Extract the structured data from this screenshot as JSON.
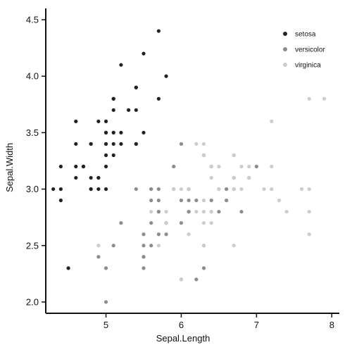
{
  "chart_data": {
    "type": "scatter",
    "title": "",
    "xlabel": "Sepal.Length",
    "ylabel": "Sepal.Width",
    "xlim": [
      4.3,
      7.9
    ],
    "ylim": [
      2.0,
      4.4
    ],
    "x_ticks": [
      5,
      6,
      7,
      8
    ],
    "y_ticks": [
      2.0,
      2.5,
      3.0,
      3.5,
      4.0,
      4.5
    ],
    "x_tick_labels": [
      "5",
      "6",
      "7",
      "8"
    ],
    "y_tick_labels": [
      "2.0",
      "2.5",
      "3.0",
      "3.5",
      "4.0",
      "4.5"
    ],
    "grid": false,
    "legend_position": "top-right",
    "series": [
      {
        "name": "setosa",
        "color": "#222222",
        "points": [
          [
            5.1,
            3.5
          ],
          [
            4.9,
            3.0
          ],
          [
            4.7,
            3.2
          ],
          [
            4.6,
            3.1
          ],
          [
            5.0,
            3.6
          ],
          [
            5.4,
            3.9
          ],
          [
            4.6,
            3.4
          ],
          [
            5.0,
            3.4
          ],
          [
            4.4,
            2.9
          ],
          [
            4.9,
            3.1
          ],
          [
            5.4,
            3.7
          ],
          [
            4.8,
            3.4
          ],
          [
            4.8,
            3.0
          ],
          [
            4.3,
            3.0
          ],
          [
            5.8,
            4.0
          ],
          [
            5.7,
            4.4
          ],
          [
            5.4,
            3.9
          ],
          [
            5.1,
            3.5
          ],
          [
            5.7,
            3.8
          ],
          [
            5.1,
            3.8
          ],
          [
            5.4,
            3.4
          ],
          [
            5.1,
            3.7
          ],
          [
            4.6,
            3.6
          ],
          [
            5.1,
            3.3
          ],
          [
            4.8,
            3.4
          ],
          [
            5.0,
            3.0
          ],
          [
            5.0,
            3.4
          ],
          [
            5.2,
            3.5
          ],
          [
            5.2,
            3.4
          ],
          [
            4.7,
            3.2
          ],
          [
            4.8,
            3.1
          ],
          [
            5.4,
            3.4
          ],
          [
            5.2,
            4.1
          ],
          [
            5.5,
            4.2
          ],
          [
            4.9,
            3.1
          ],
          [
            5.0,
            3.2
          ],
          [
            5.5,
            3.5
          ],
          [
            4.9,
            3.6
          ],
          [
            4.4,
            3.0
          ],
          [
            5.1,
            3.4
          ],
          [
            5.0,
            3.5
          ],
          [
            4.5,
            2.3
          ],
          [
            4.4,
            3.2
          ],
          [
            5.0,
            3.5
          ],
          [
            5.1,
            3.8
          ],
          [
            4.8,
            3.0
          ],
          [
            5.1,
            3.8
          ],
          [
            4.6,
            3.2
          ],
          [
            5.3,
            3.7
          ],
          [
            5.0,
            3.3
          ]
        ]
      },
      {
        "name": "versicolor",
        "color": "#8c8c8c",
        "points": [
          [
            7.0,
            3.2
          ],
          [
            6.4,
            3.2
          ],
          [
            6.9,
            3.1
          ],
          [
            5.5,
            2.3
          ],
          [
            6.5,
            2.8
          ],
          [
            5.7,
            2.8
          ],
          [
            6.3,
            3.3
          ],
          [
            4.9,
            2.4
          ],
          [
            6.6,
            2.9
          ],
          [
            5.2,
            2.7
          ],
          [
            5.0,
            2.0
          ],
          [
            5.9,
            3.0
          ],
          [
            6.0,
            2.2
          ],
          [
            6.1,
            2.9
          ],
          [
            5.6,
            2.9
          ],
          [
            6.7,
            3.1
          ],
          [
            5.6,
            3.0
          ],
          [
            5.8,
            2.7
          ],
          [
            6.2,
            2.2
          ],
          [
            5.6,
            2.5
          ],
          [
            5.9,
            3.2
          ],
          [
            6.1,
            2.8
          ],
          [
            6.3,
            2.5
          ],
          [
            6.1,
            2.8
          ],
          [
            6.4,
            2.9
          ],
          [
            6.6,
            3.0
          ],
          [
            6.8,
            2.8
          ],
          [
            6.7,
            3.0
          ],
          [
            6.0,
            2.9
          ],
          [
            5.7,
            2.6
          ],
          [
            5.5,
            2.4
          ],
          [
            5.5,
            2.4
          ],
          [
            5.8,
            2.7
          ],
          [
            6.0,
            2.7
          ],
          [
            5.4,
            3.0
          ],
          [
            6.0,
            3.4
          ],
          [
            6.7,
            3.1
          ],
          [
            6.3,
            2.3
          ],
          [
            5.6,
            3.0
          ],
          [
            5.5,
            2.5
          ],
          [
            5.5,
            2.6
          ],
          [
            6.1,
            3.0
          ],
          [
            5.8,
            2.6
          ],
          [
            5.0,
            2.3
          ],
          [
            5.6,
            2.7
          ],
          [
            5.7,
            3.0
          ],
          [
            5.7,
            2.9
          ],
          [
            6.2,
            2.9
          ],
          [
            5.1,
            2.5
          ],
          [
            5.7,
            2.8
          ]
        ]
      },
      {
        "name": "virginica",
        "color": "#cccccc",
        "points": [
          [
            6.3,
            3.3
          ],
          [
            5.8,
            2.7
          ],
          [
            7.1,
            3.0
          ],
          [
            6.3,
            2.9
          ],
          [
            6.5,
            3.0
          ],
          [
            7.6,
            3.0
          ],
          [
            4.9,
            2.5
          ],
          [
            7.3,
            2.9
          ],
          [
            6.7,
            2.5
          ],
          [
            7.2,
            3.6
          ],
          [
            6.5,
            3.2
          ],
          [
            6.4,
            2.7
          ],
          [
            6.8,
            3.0
          ],
          [
            5.7,
            2.5
          ],
          [
            5.8,
            2.8
          ],
          [
            6.4,
            3.2
          ],
          [
            6.5,
            3.0
          ],
          [
            7.7,
            3.8
          ],
          [
            7.7,
            2.6
          ],
          [
            6.0,
            2.2
          ],
          [
            6.9,
            3.2
          ],
          [
            5.6,
            2.8
          ],
          [
            7.7,
            2.8
          ],
          [
            6.3,
            2.7
          ],
          [
            6.7,
            3.3
          ],
          [
            7.2,
            3.2
          ],
          [
            6.2,
            2.8
          ],
          [
            6.1,
            3.0
          ],
          [
            6.4,
            2.8
          ],
          [
            7.2,
            3.0
          ],
          [
            7.4,
            2.8
          ],
          [
            7.9,
            3.8
          ],
          [
            6.4,
            2.8
          ],
          [
            6.3,
            2.8
          ],
          [
            6.1,
            2.6
          ],
          [
            7.7,
            3.0
          ],
          [
            6.3,
            3.4
          ],
          [
            6.4,
            3.1
          ],
          [
            6.0,
            3.0
          ],
          [
            6.9,
            3.1
          ],
          [
            6.7,
            3.1
          ],
          [
            6.9,
            3.1
          ],
          [
            5.8,
            2.7
          ],
          [
            6.8,
            3.2
          ],
          [
            6.7,
            3.3
          ],
          [
            6.7,
            3.0
          ],
          [
            6.3,
            2.5
          ],
          [
            6.5,
            3.0
          ],
          [
            6.2,
            3.4
          ],
          [
            5.9,
            3.0
          ]
        ]
      }
    ]
  }
}
